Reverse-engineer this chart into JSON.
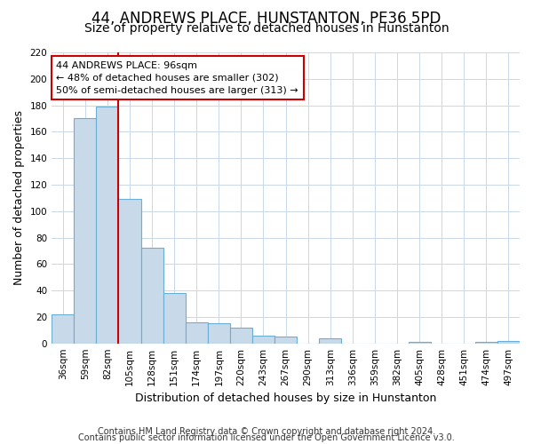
{
  "title": "44, ANDREWS PLACE, HUNSTANTON, PE36 5PD",
  "subtitle": "Size of property relative to detached houses in Hunstanton",
  "xlabel": "Distribution of detached houses by size in Hunstanton",
  "ylabel": "Number of detached properties",
  "bar_labels": [
    "36sqm",
    "59sqm",
    "82sqm",
    "105sqm",
    "128sqm",
    "151sqm",
    "174sqm",
    "197sqm",
    "220sqm",
    "243sqm",
    "267sqm",
    "290sqm",
    "313sqm",
    "336sqm",
    "359sqm",
    "382sqm",
    "405sqm",
    "428sqm",
    "451sqm",
    "474sqm",
    "497sqm"
  ],
  "bar_values": [
    22,
    170,
    179,
    109,
    72,
    38,
    16,
    15,
    12,
    6,
    5,
    0,
    4,
    0,
    0,
    0,
    1,
    0,
    0,
    1,
    2
  ],
  "bar_color": "#c8daea",
  "bar_edge_color": "#6aaed6",
  "vline_color": "#cc0000",
  "vline_x_index": 2.5,
  "annotation_box_text": "44 ANDREWS PLACE: 96sqm\n← 48% of detached houses are smaller (302)\n50% of semi-detached houses are larger (313) →",
  "ylim": [
    0,
    220
  ],
  "yticks": [
    0,
    20,
    40,
    60,
    80,
    100,
    120,
    140,
    160,
    180,
    200,
    220
  ],
  "footer_line1": "Contains HM Land Registry data © Crown copyright and database right 2024.",
  "footer_line2": "Contains public sector information licensed under the Open Government Licence v3.0.",
  "grid_color": "#c8d8e8",
  "title_fontsize": 12,
  "subtitle_fontsize": 10,
  "axis_label_fontsize": 9,
  "tick_fontsize": 7.5,
  "footer_fontsize": 7
}
